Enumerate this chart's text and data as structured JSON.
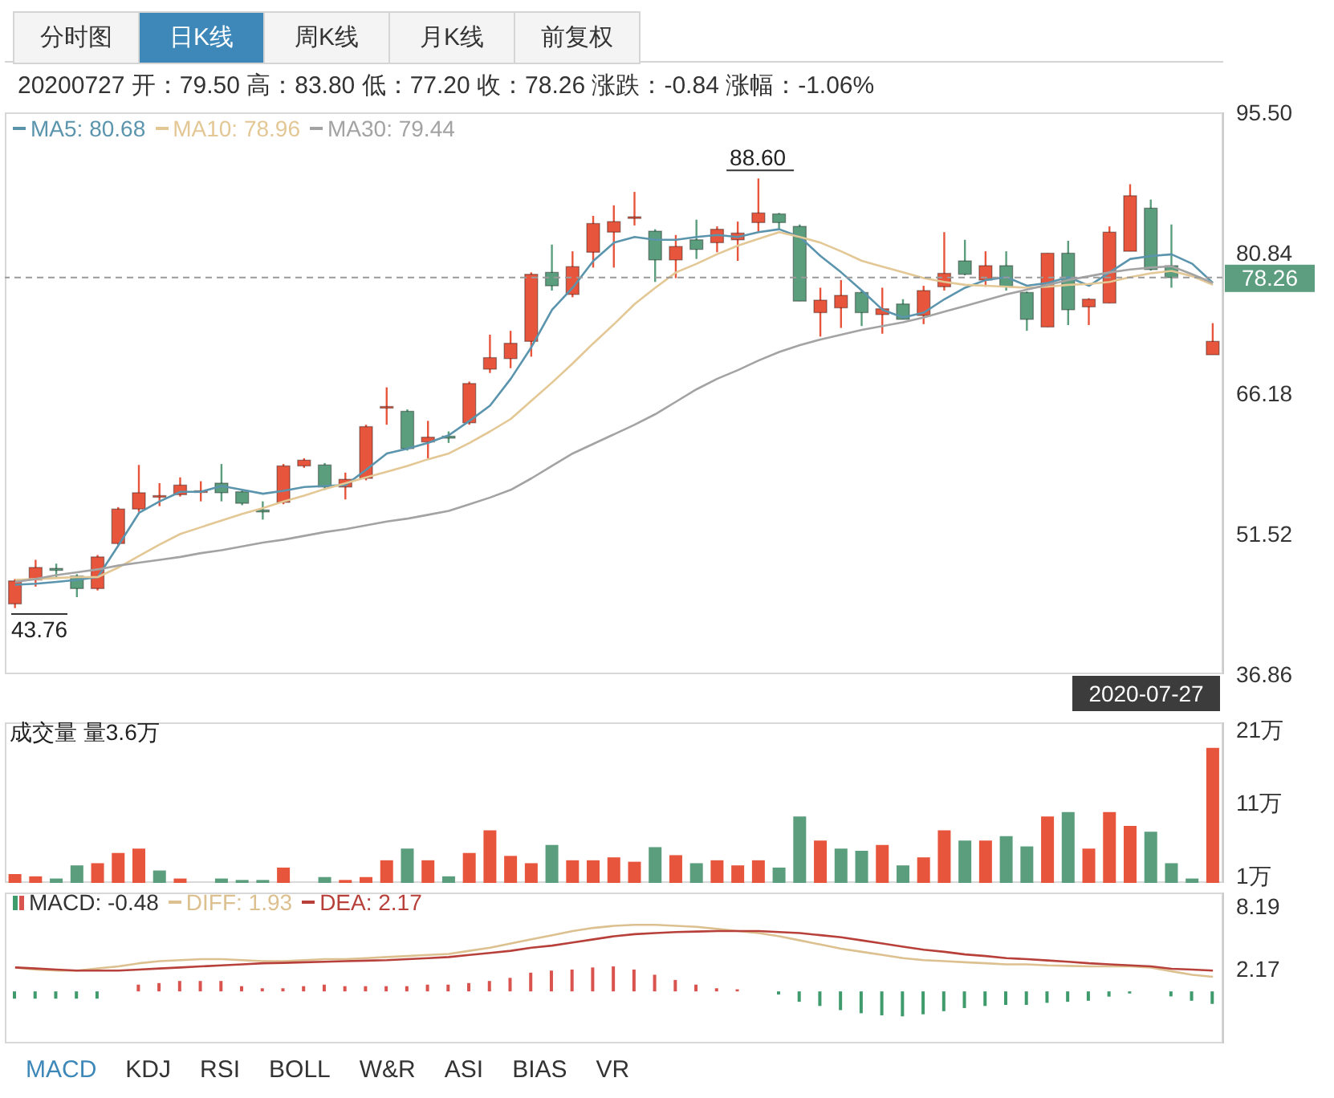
{
  "chart_data": [
    {
      "type": "candlestick",
      "subtitle": "20200727 开：79.50 高：83.80 低：77.20 收：78.26 涨跌：-0.84 涨幅：-1.06%",
      "categories": [
        null,
        null,
        null,
        null,
        null,
        null,
        null,
        null,
        null,
        null,
        null,
        null,
        null,
        null,
        null,
        null,
        null,
        null,
        null,
        null,
        null,
        null,
        null,
        null,
        null,
        null,
        null,
        null,
        null,
        null,
        null,
        null,
        null,
        null,
        null,
        null,
        null,
        null,
        null,
        null,
        null,
        null,
        null,
        null,
        null,
        null,
        null,
        null,
        null,
        null,
        null,
        null,
        null,
        null,
        null,
        null,
        null,
        null,
        null
      ],
      "ohlc": [
        [
          44.2,
          46.8,
          43.76,
          46.6
        ],
        [
          46.7,
          48.8,
          46.0,
          48.0
        ],
        [
          47.9,
          48.4,
          47.0,
          47.7
        ],
        [
          47.1,
          47.3,
          44.9,
          45.8
        ],
        [
          45.8,
          49.3,
          45.6,
          49.1
        ],
        [
          50.5,
          54.3,
          50.3,
          54.1
        ],
        [
          54.1,
          58.7,
          53.8,
          55.8
        ],
        [
          55.5,
          56.8,
          54.4,
          55.5
        ],
        [
          55.6,
          57.4,
          55.4,
          56.6
        ],
        [
          56.0,
          57.0,
          54.9,
          56.0
        ],
        [
          56.8,
          58.8,
          54.9,
          55.8
        ],
        [
          55.9,
          56.1,
          54.5,
          54.7
        ],
        [
          54.0,
          54.9,
          53.0,
          53.8
        ],
        [
          54.8,
          58.8,
          54.6,
          58.6
        ],
        [
          58.6,
          59.4,
          58.4,
          59.2
        ],
        [
          58.7,
          58.9,
          56.1,
          56.4
        ],
        [
          56.4,
          57.9,
          55.1,
          57.2
        ],
        [
          57.3,
          62.9,
          57.1,
          62.7
        ],
        [
          64.7,
          66.8,
          62.9,
          64.8
        ],
        [
          64.3,
          64.5,
          60.2,
          60.4
        ],
        [
          61.1,
          63.3,
          59.4,
          61.6
        ],
        [
          61.7,
          62.2,
          61.0,
          61.5
        ],
        [
          63.1,
          67.4,
          62.9,
          67.2
        ],
        [
          68.7,
          72.3,
          68.3,
          69.9
        ],
        [
          69.8,
          72.7,
          68.8,
          71.4
        ],
        [
          71.6,
          78.8,
          70.0,
          78.6
        ],
        [
          78.8,
          81.7,
          76.9,
          77.4
        ],
        [
          76.5,
          81.0,
          76.2,
          79.4
        ],
        [
          80.9,
          84.7,
          79.3,
          83.9
        ],
        [
          83.0,
          85.8,
          79.3,
          84.1
        ],
        [
          84.5,
          87.2,
          83.7,
          84.6
        ],
        [
          83.1,
          83.3,
          77.8,
          80.1
        ],
        [
          80.1,
          82.7,
          78.2,
          81.5
        ],
        [
          82.2,
          84.3,
          80.2,
          81.2
        ],
        [
          81.9,
          83.6,
          80.9,
          83.3
        ],
        [
          82.2,
          84.1,
          80.0,
          82.9
        ],
        [
          84.0,
          88.6,
          83.0,
          85.0
        ],
        [
          84.9,
          85.0,
          83.2,
          84.0
        ],
        [
          83.6,
          83.8,
          75.8,
          75.8
        ],
        [
          74.6,
          77.2,
          72.1,
          75.9
        ],
        [
          75.1,
          78.0,
          73.0,
          76.4
        ],
        [
          76.7,
          76.9,
          73.2,
          74.6
        ],
        [
          74.4,
          77.2,
          72.4,
          75.0
        ],
        [
          75.5,
          76.0,
          73.9,
          73.9
        ],
        [
          74.3,
          77.4,
          73.4,
          76.9
        ],
        [
          77.3,
          83.0,
          76.9,
          78.7
        ],
        [
          80.0,
          82.2,
          78.5,
          78.6
        ],
        [
          78.0,
          81.0,
          77.3,
          79.5
        ],
        [
          79.5,
          81.0,
          76.9,
          77.3
        ],
        [
          76.7,
          76.8,
          72.7,
          73.9
        ],
        [
          73.1,
          80.8,
          73.1,
          80.8
        ],
        [
          80.8,
          82.1,
          73.3,
          74.9
        ],
        [
          75.2,
          76.1,
          73.3,
          76.0
        ],
        [
          75.6,
          83.6,
          75.6,
          83.0
        ],
        [
          81.0,
          88.0,
          81.0,
          86.8
        ],
        [
          85.5,
          86.4,
          79.0,
          79.1
        ],
        [
          79.5,
          83.8,
          77.2,
          78.26
        ],
        null,
        [
          70.2,
          73.5,
          70.2,
          71.6
        ]
      ],
      "colors": [
        "#e8553d",
        "#e8553d",
        "#5b9e7d",
        "#5b9e7d",
        "#e8553d",
        "#e8553d",
        "#e8553d",
        "#e8553d",
        "#e8553d",
        "#e8553d",
        "#5b9e7d",
        "#5b9e7d",
        "#5b9e7d",
        "#e8553d",
        "#e8553d",
        "#5b9e7d",
        "#e8553d",
        "#e8553d",
        "#e8553d",
        "#5b9e7d",
        "#e8553d",
        "#5b9e7d",
        "#e8553d",
        "#e8553d",
        "#e8553d",
        "#e8553d",
        "#5b9e7d",
        "#e8553d",
        "#e8553d",
        "#e8553d",
        "#e8553d",
        "#5b9e7d",
        "#e8553d",
        "#5b9e7d",
        "#e8553d",
        "#e8553d",
        "#e8553d",
        "#5b9e7d",
        "#5b9e7d",
        "#e8553d",
        "#e8553d",
        "#5b9e7d",
        "#e8553d",
        "#5b9e7d",
        "#e8553d",
        "#e8553d",
        "#5b9e7d",
        "#e8553d",
        "#5b9e7d",
        "#5b9e7d",
        "#e8553d",
        "#5b9e7d",
        "#e8553d",
        "#e8553d",
        "#e8553d",
        "#5b9e7d",
        "#5b9e7d",
        null,
        "#e8553d"
      ],
      "series": [
        {
          "type": "line",
          "name": "MA5: 80.68",
          "color": "#5a94ad",
          "values": [
            46.2,
            46.3,
            46.5,
            46.7,
            47.0,
            50.3,
            53.7,
            54.9,
            55.9,
            55.9,
            56.5,
            56.1,
            55.7,
            56.0,
            56.4,
            56.5,
            56.6,
            58.2,
            59.9,
            60.4,
            61.0,
            61.8,
            63.3,
            64.9,
            67.7,
            71.0,
            74.9,
            77.2,
            80.0,
            81.9,
            82.5,
            82.2,
            82.2,
            82.5,
            82.7,
            82.5,
            83.0,
            83.3,
            82.5,
            80.5,
            78.8,
            76.9,
            74.9,
            74.1,
            74.6,
            76.0,
            77.2,
            78.0,
            78.3,
            77.4,
            77.7,
            78.3,
            77.4,
            78.8,
            80.2,
            80.5,
            80.68,
            79.7,
            77.7
          ]
        },
        {
          "type": "line",
          "name": "MA10: 78.96",
          "color": "#e3c795",
          "values": [
            46.7,
            46.8,
            46.9,
            47.0,
            47.0,
            48.0,
            49.2,
            50.4,
            51.5,
            52.2,
            52.9,
            53.6,
            54.2,
            54.9,
            55.5,
            56.2,
            56.8,
            57.4,
            58.0,
            58.6,
            59.3,
            59.9,
            61.0,
            62.2,
            63.5,
            65.4,
            67.3,
            69.3,
            71.4,
            73.4,
            75.5,
            77.2,
            78.8,
            79.7,
            80.7,
            81.6,
            82.3,
            83.0,
            82.5,
            81.9,
            81.0,
            80.0,
            79.4,
            78.8,
            78.2,
            77.8,
            77.5,
            77.4,
            77.3,
            77.2,
            77.3,
            77.5,
            77.6,
            77.8,
            78.3,
            78.7,
            78.96,
            78.4,
            77.5
          ]
        },
        {
          "type": "line",
          "name": "MA30: 79.44",
          "color": "#a3a3a3",
          "values": [
            46.5,
            46.8,
            47.2,
            47.5,
            47.8,
            48.2,
            48.5,
            48.8,
            49.1,
            49.5,
            49.8,
            50.2,
            50.6,
            50.9,
            51.3,
            51.7,
            52.0,
            52.4,
            52.8,
            53.1,
            53.5,
            53.9,
            54.6,
            55.3,
            56.1,
            57.3,
            58.6,
            59.9,
            60.9,
            61.9,
            62.9,
            64.0,
            65.3,
            66.6,
            67.7,
            68.6,
            69.6,
            70.5,
            71.2,
            71.8,
            72.3,
            72.8,
            73.2,
            73.6,
            74.1,
            74.7,
            75.3,
            75.9,
            76.5,
            77.0,
            77.5,
            78.0,
            78.4,
            78.8,
            79.1,
            79.3,
            79.44,
            78.6,
            77.7
          ]
        }
      ],
      "ylim": [
        36.86,
        95.5
      ],
      "yticks": [
        {
          "value": 95.5,
          "label": "95.50"
        },
        80.84,
        66.18,
        51.52,
        36.86
      ],
      "tick_labels": "y",
      "legend": "top left",
      "ref_lines": [
        {
          "axis": "y",
          "value": 78.26,
          "label": "78.26",
          "color": "#9a9a9a",
          "line_style": "dashed"
        }
      ],
      "annotations": [
        "分时图",
        "日K线",
        "周K线",
        "月K线",
        "前复权",
        {
          "text": "88.60",
          "y": 88.6
        },
        "43.76"
      ]
    },
    {
      "type": "bar",
      "title": "成交量 量3.6万",
      "categories": [
        null,
        null,
        null,
        null,
        null,
        null,
        null,
        null,
        null,
        null,
        null,
        null,
        null,
        null,
        null,
        null,
        null,
        null,
        null,
        null,
        null,
        null,
        null,
        null,
        null,
        null,
        null,
        null,
        null,
        null,
        null,
        null,
        null,
        null,
        null,
        null,
        null,
        null,
        null,
        null,
        null,
        null,
        null,
        null,
        null,
        null,
        null,
        null,
        null,
        null,
        null,
        null,
        null,
        null,
        null,
        null,
        null,
        null,
        null
      ],
      "values": [
        1.2,
        0.9,
        0.6,
        2.4,
        2.7,
        4.1,
        4.7,
        1.7,
        0.6,
        null,
        0.6,
        0.4,
        0.4,
        2.1,
        null,
        0.8,
        0.4,
        0.8,
        3.1,
        4.7,
        3.1,
        0.9,
        4.1,
        7.2,
        3.7,
        2.7,
        5.2,
        3.1,
        3.1,
        3.5,
        2.9,
        4.9,
        3.8,
        2.7,
        3.1,
        2.4,
        3.1,
        2.1,
        9.1,
        5.8,
        4.7,
        4.4,
        5.2,
        2.4,
        3.5,
        7.2,
        5.8,
        5.8,
        6.4,
        5.0,
        9.1,
        9.7,
        4.7,
        9.7,
        7.8,
        7.0,
        2.7,
        0.6,
        18.5
      ],
      "colors": [
        "#e8553d",
        "#e8553d",
        "#5b9e7d",
        "#5b9e7d",
        "#e8553d",
        "#e8553d",
        "#e8553d",
        "#5b9e7d",
        "#e8553d",
        null,
        "#5b9e7d",
        "#5b9e7d",
        "#5b9e7d",
        "#e8553d",
        null,
        "#5b9e7d",
        "#e8553d",
        "#e8553d",
        "#e8553d",
        "#5b9e7d",
        "#e8553d",
        "#5b9e7d",
        "#e8553d",
        "#e8553d",
        "#e8553d",
        "#e8553d",
        "#5b9e7d",
        "#e8553d",
        "#e8553d",
        "#e8553d",
        "#e8553d",
        "#5b9e7d",
        "#e8553d",
        "#5b9e7d",
        "#e8553d",
        "#e8553d",
        "#e8553d",
        "#5b9e7d",
        "#5b9e7d",
        "#e8553d",
        "#5b9e7d",
        "#5b9e7d",
        "#e8553d",
        "#5b9e7d",
        "#e8553d",
        "#e8553d",
        "#5b9e7d",
        "#e8553d",
        "#5b9e7d",
        "#5b9e7d",
        "#e8553d",
        "#5b9e7d",
        "#e8553d",
        "#e8553d",
        "#e8553d",
        "#5b9e7d",
        "#5b9e7d",
        "#5b9e7d",
        "#e8553d"
      ],
      "ylim": [
        0,
        22
      ],
      "yticks": [
        {
          "value": 1,
          "label": "1万"
        },
        {
          "value": 11,
          "label": "11万"
        },
        {
          "value": 21,
          "label": "21万"
        }
      ],
      "tick_labels": "y",
      "annotations": [
        "2020-07-27"
      ]
    },
    {
      "type": "bar",
      "categories": [
        null,
        null,
        null,
        null,
        null,
        null,
        null,
        null,
        null,
        null,
        null,
        null,
        null,
        null,
        null,
        null,
        null,
        null,
        null,
        null,
        null,
        null,
        null,
        null,
        null,
        null,
        null,
        null,
        null,
        null,
        null,
        null,
        null,
        null,
        null,
        null,
        null,
        null,
        null,
        null,
        null,
        null,
        null,
        null,
        null,
        null,
        null,
        null,
        null,
        null,
        null,
        null,
        null,
        null,
        null,
        null,
        null,
        null,
        null
      ],
      "series": [
        {
          "type": "bar",
          "name": "MACD: -0.48",
          "values": [
            -0.7,
            -0.7,
            -0.7,
            -0.7,
            -0.7,
            0,
            0.65,
            0.8,
            1.0,
            1.0,
            1.0,
            0.5,
            0.3,
            0.3,
            0.5,
            0.65,
            0.5,
            0.5,
            0.5,
            0.5,
            0.65,
            0.65,
            0.8,
            1.0,
            1.3,
            1.8,
            2.0,
            2.1,
            2.3,
            2.4,
            2.1,
            1.6,
            1.1,
            0.65,
            0.3,
            0.2,
            0,
            -0.3,
            -1.0,
            -1.4,
            -1.8,
            -2.1,
            -2.3,
            -2.4,
            -2.2,
            -1.9,
            -1.6,
            -1.4,
            -1.3,
            -1.3,
            -1.1,
            -1.0,
            -0.9,
            -0.5,
            -0.2,
            0,
            -0.48,
            -0.9,
            -1.2
          ],
          "colors": [
            "#3f9a6c",
            "#3f9a6c",
            "#3f9a6c",
            "#3f9a6c",
            "#3f9a6c",
            "#d9534f",
            "#d9534f",
            "#d9534f",
            "#d9534f",
            "#d9534f",
            "#d9534f",
            "#d9534f",
            "#d9534f",
            "#d9534f",
            "#d9534f",
            "#d9534f",
            "#d9534f",
            "#d9534f",
            "#d9534f",
            "#d9534f",
            "#d9534f",
            "#d9534f",
            "#d9534f",
            "#d9534f",
            "#d9534f",
            "#d9534f",
            "#d9534f",
            "#d9534f",
            "#d9534f",
            "#d9534f",
            "#d9534f",
            "#d9534f",
            "#d9534f",
            "#d9534f",
            "#d9534f",
            "#d9534f",
            "#d9534f",
            "#3f9a6c",
            "#3f9a6c",
            "#3f9a6c",
            "#3f9a6c",
            "#3f9a6c",
            "#3f9a6c",
            "#3f9a6c",
            "#3f9a6c",
            "#3f9a6c",
            "#3f9a6c",
            "#3f9a6c",
            "#3f9a6c",
            "#3f9a6c",
            "#3f9a6c",
            "#3f9a6c",
            "#3f9a6c",
            "#3f9a6c",
            "#3f9a6c",
            "#3f9a6c",
            "#3f9a6c",
            "#3f9a6c",
            "#3f9a6c"
          ]
        },
        {
          "type": "line",
          "name": "DIFF: 1.93",
          "color": "#dcc08f",
          "values": [
            2.3,
            2.1,
            2.0,
            2.0,
            2.2,
            2.4,
            2.7,
            2.9,
            3.0,
            3.1,
            3.1,
            3.0,
            2.9,
            2.9,
            3.0,
            3.1,
            3.1,
            3.2,
            3.3,
            3.4,
            3.5,
            3.6,
            3.9,
            4.2,
            4.6,
            5.0,
            5.4,
            5.8,
            6.1,
            6.3,
            6.4,
            6.4,
            6.3,
            6.2,
            6.0,
            5.8,
            5.6,
            5.3,
            4.9,
            4.5,
            4.1,
            3.8,
            3.5,
            3.2,
            3.0,
            2.9,
            2.8,
            2.7,
            2.6,
            2.6,
            2.5,
            2.45,
            2.4,
            2.4,
            2.4,
            2.3,
            1.93,
            1.6,
            1.4
          ]
        },
        {
          "type": "line",
          "name": "DEA: 2.17",
          "color": "#b8403a",
          "values": [
            2.3,
            2.2,
            2.1,
            2.0,
            2.0,
            2.0,
            2.1,
            2.2,
            2.3,
            2.4,
            2.5,
            2.6,
            2.7,
            2.74,
            2.8,
            2.85,
            2.9,
            2.95,
            3.0,
            3.1,
            3.2,
            3.3,
            3.5,
            3.7,
            3.9,
            4.2,
            4.4,
            4.7,
            5.0,
            5.3,
            5.5,
            5.6,
            5.7,
            5.75,
            5.8,
            5.8,
            5.8,
            5.7,
            5.6,
            5.4,
            5.2,
            4.9,
            4.6,
            4.3,
            4.0,
            3.8,
            3.55,
            3.4,
            3.2,
            3.1,
            2.97,
            2.85,
            2.7,
            2.6,
            2.5,
            2.4,
            2.17,
            2.1,
            2.0
          ]
        }
      ],
      "ylim": [
        -5,
        9.5
      ],
      "yticks": [
        8.19,
        2.17
      ],
      "tick_labels": "y",
      "legend": "top left",
      "annotations": [
        "MACD",
        "KDJ",
        "RSI",
        "BOLL",
        "W&R",
        "ASI",
        "BIAS",
        "VR"
      ]
    }
  ]
}
